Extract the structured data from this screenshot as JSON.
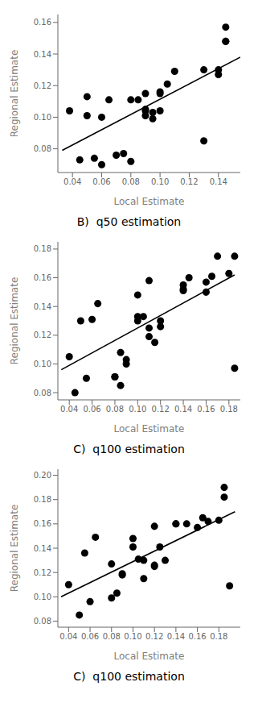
{
  "chart_data": [
    {
      "type": "scatter",
      "title": "B)  q50 estimation",
      "xlabel": "Local Estimate",
      "ylabel": "Regional Estimate",
      "xlim": [
        0.03,
        0.155
      ],
      "ylim": [
        0.065,
        0.165
      ],
      "xticks": [
        0.04,
        0.06,
        0.08,
        {
          "value": 0.1,
          "label": "0.10"
        },
        0.12,
        0.14
      ],
      "yticks": [
        0.08,
        {
          "value": 0.1,
          "label": "0.10"
        },
        0.12,
        0.14,
        0.16
      ],
      "series": [
        {
          "type": "scatter",
          "color": "black",
          "marker": "o",
          "x": [
            0.038,
            0.045,
            0.05,
            0.05,
            0.055,
            0.06,
            0.06,
            0.065,
            0.07,
            0.075,
            0.08,
            0.08,
            0.085,
            0.09,
            0.09,
            0.09,
            0.09,
            0.095,
            0.095,
            0.1,
            0.1,
            0.1,
            0.105,
            0.11,
            0.13,
            0.13,
            0.14,
            0.14,
            0.145,
            0.145,
            0.145
          ],
          "values": [
            0.104,
            0.073,
            0.101,
            0.113,
            0.074,
            0.07,
            0.1,
            0.111,
            0.076,
            0.077,
            0.111,
            0.072,
            0.111,
            0.105,
            0.101,
            0.104,
            0.115,
            0.103,
            0.099,
            0.104,
            0.116,
            0.115,
            0.121,
            0.129,
            0.13,
            0.085,
            0.13,
            0.127,
            0.148,
            0.148,
            0.157
          ]
        },
        {
          "type": "line",
          "color": "black",
          "line_style": "solid",
          "x": [
            0.033,
            0.155
          ],
          "values": [
            0.079,
            0.138
          ]
        }
      ]
    },
    {
      "type": "scatter",
      "title": "C)  q100 estimation",
      "xlabel": "Local Estimate",
      "ylabel": "Regional Estimate",
      "xlim": [
        0.03,
        0.19
      ],
      "ylim": [
        0.075,
        0.185
      ],
      "xticks": [
        0.04,
        0.06,
        0.08,
        {
          "value": 0.1,
          "label": "0.10"
        },
        0.12,
        0.14,
        0.16,
        0.18
      ],
      "yticks": [
        0.08,
        {
          "value": 0.1,
          "label": "0.10"
        },
        0.12,
        0.14,
        0.16,
        0.18
      ],
      "series": [
        {
          "type": "scatter",
          "color": "black",
          "marker": "o",
          "x": [
            0.04,
            0.045,
            0.05,
            0.055,
            0.06,
            0.065,
            0.08,
            0.08,
            0.085,
            0.085,
            0.09,
            0.09,
            0.1,
            0.1,
            0.1,
            0.105,
            0.11,
            0.11,
            0.11,
            0.115,
            0.12,
            0.12,
            0.14,
            0.14,
            0.14,
            0.145,
            0.16,
            0.16,
            0.165,
            0.17,
            0.18,
            0.185,
            0.185
          ],
          "values": [
            0.105,
            0.08,
            0.13,
            0.09,
            0.131,
            0.142,
            0.091,
            0.091,
            0.085,
            0.108,
            0.1,
            0.103,
            0.148,
            0.13,
            0.133,
            0.133,
            0.119,
            0.125,
            0.158,
            0.115,
            0.13,
            0.126,
            0.152,
            0.155,
            0.151,
            0.16,
            0.157,
            0.15,
            0.161,
            0.175,
            0.163,
            0.175,
            0.097
          ]
        },
        {
          "type": "line",
          "color": "black",
          "line_style": "solid",
          "x": [
            0.033,
            0.185
          ],
          "values": [
            0.096,
            0.162
          ]
        }
      ]
    },
    {
      "type": "scatter",
      "title": "C)  q100 estimation",
      "xlabel": "Local Estimate",
      "ylabel": "Regional Estimate",
      "xlim": [
        0.03,
        0.2
      ],
      "ylim": [
        0.075,
        0.205
      ],
      "xticks": [
        0.04,
        0.06,
        0.08,
        {
          "value": 0.1,
          "label": "0.10"
        },
        0.12,
        0.14,
        0.16,
        0.18
      ],
      "yticks": [
        0.08,
        {
          "value": 0.1,
          "label": "0.10"
        },
        0.12,
        0.14,
        0.16,
        0.18,
        {
          "value": 0.2,
          "label": "0.20"
        }
      ],
      "series": [
        {
          "type": "scatter",
          "color": "black",
          "marker": "o",
          "x": [
            0.04,
            0.05,
            0.055,
            0.06,
            0.065,
            0.08,
            0.08,
            0.085,
            0.09,
            0.09,
            0.1,
            0.1,
            0.105,
            0.11,
            0.11,
            0.12,
            0.12,
            0.12,
            0.125,
            0.13,
            0.14,
            0.14,
            0.15,
            0.16,
            0.165,
            0.17,
            0.18,
            0.185,
            0.185,
            0.19
          ],
          "values": [
            0.11,
            0.085,
            0.136,
            0.096,
            0.149,
            0.127,
            0.099,
            0.103,
            0.118,
            0.119,
            0.148,
            0.141,
            0.131,
            0.115,
            0.13,
            0.126,
            0.125,
            0.158,
            0.141,
            0.13,
            0.16,
            0.16,
            0.16,
            0.157,
            0.165,
            0.162,
            0.163,
            0.182,
            0.19,
            0.109
          ]
        },
        {
          "type": "line",
          "color": "black",
          "line_style": "solid",
          "x": [
            0.033,
            0.195
          ],
          "values": [
            0.1,
            0.17
          ]
        }
      ]
    }
  ]
}
